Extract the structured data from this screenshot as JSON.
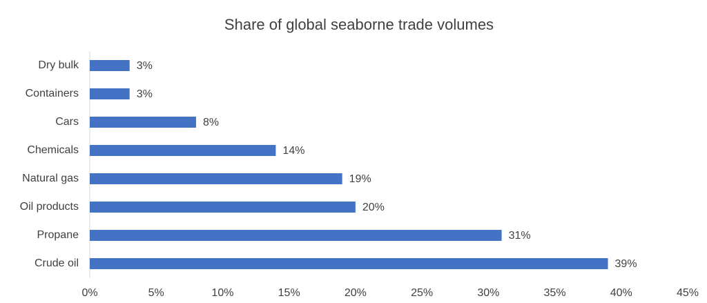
{
  "chart_data": {
    "type": "bar",
    "orientation": "horizontal",
    "title": "Share of global seaborne trade volumes",
    "categories": [
      "Dry bulk",
      "Containers",
      "Cars",
      "Chemicals",
      "Natural gas",
      "Oil products",
      "Propane",
      "Crude oil"
    ],
    "values": [
      3,
      3,
      8,
      14,
      19,
      20,
      31,
      39
    ],
    "value_labels": [
      "3%",
      "3%",
      "8%",
      "14%",
      "19%",
      "20%",
      "31%",
      "39%"
    ],
    "color": "#4472c4",
    "xlim": [
      0,
      45
    ],
    "xticks": [
      {
        "value": 0,
        "label": "0%"
      },
      {
        "value": 5,
        "label": "5%"
      },
      {
        "value": 10,
        "label": "10%"
      },
      {
        "value": 15,
        "label": "15%"
      },
      {
        "value": 20,
        "label": "20%"
      },
      {
        "value": 25,
        "label": "25%"
      },
      {
        "value": 30,
        "label": "30%"
      },
      {
        "value": 35,
        "label": "35%"
      },
      {
        "value": 40,
        "label": "40%"
      },
      {
        "value": 45,
        "label": "45%"
      }
    ],
    "grid": false
  }
}
